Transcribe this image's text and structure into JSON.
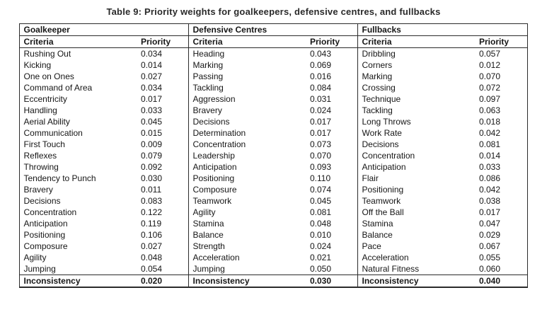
{
  "title": "Table 9: Priority weights for goalkeepers, defensive centres, and fullbacks",
  "chart_data": {
    "type": "table",
    "groups": [
      {
        "name": "Goalkeeper",
        "col_headers": [
          "Criteria",
          "Priority"
        ],
        "rows": [
          [
            "Rushing Out",
            "0.034"
          ],
          [
            "Kicking",
            "0.014"
          ],
          [
            "One on Ones",
            "0.027"
          ],
          [
            "Command of Area",
            "0.034"
          ],
          [
            "Eccentricity",
            "0.017"
          ],
          [
            "Handling",
            "0.033"
          ],
          [
            "Aerial Ability",
            "0.045"
          ],
          [
            "Communication",
            "0.015"
          ],
          [
            "First Touch",
            "0.009"
          ],
          [
            "Reflexes",
            "0.079"
          ],
          [
            "Throwing",
            "0.092"
          ],
          [
            "Tendency to Punch",
            "0.030"
          ],
          [
            "Bravery",
            "0.011"
          ],
          [
            "Decisions",
            "0.083"
          ],
          [
            "Concentration",
            "0.122"
          ],
          [
            "Anticipation",
            "0.119"
          ],
          [
            "Positioning",
            "0.106"
          ],
          [
            "Composure",
            "0.027"
          ],
          [
            "Agility",
            "0.048"
          ],
          [
            "Jumping",
            "0.054"
          ]
        ],
        "footer": [
          "Inconsistency",
          "0.020"
        ]
      },
      {
        "name": "Defensive Centres",
        "col_headers": [
          "Criteria",
          "Priority"
        ],
        "rows": [
          [
            "Heading",
            "0.043"
          ],
          [
            "Marking",
            "0.069"
          ],
          [
            "Passing",
            "0.016"
          ],
          [
            "Tackling",
            "0.084"
          ],
          [
            "Aggression",
            "0.031"
          ],
          [
            "Bravery",
            "0.024"
          ],
          [
            "Decisions",
            "0.017"
          ],
          [
            "Determination",
            "0.017"
          ],
          [
            "Concentration",
            "0.073"
          ],
          [
            "Leadership",
            "0.070"
          ],
          [
            "Anticipation",
            "0.093"
          ],
          [
            "Positioning",
            "0.110"
          ],
          [
            "Composure",
            "0.074"
          ],
          [
            "Teamwork",
            "0.045"
          ],
          [
            "Agility",
            "0.081"
          ],
          [
            "Stamina",
            "0.048"
          ],
          [
            "Balance",
            "0.010"
          ],
          [
            "Strength",
            "0.024"
          ],
          [
            "Acceleration",
            "0.021"
          ],
          [
            "Jumping",
            "0.050"
          ]
        ],
        "footer": [
          "Inconsistency",
          "0.030"
        ]
      },
      {
        "name": "Fullbacks",
        "col_headers": [
          "Criteria",
          "Priority"
        ],
        "rows": [
          [
            "Dribbling",
            "0.057"
          ],
          [
            "Corners",
            "0.012"
          ],
          [
            "Marking",
            "0.070"
          ],
          [
            "Crossing",
            "0.072"
          ],
          [
            "Technique",
            "0.097"
          ],
          [
            "Tackling",
            "0.063"
          ],
          [
            "Long Throws",
            "0.018"
          ],
          [
            "Work Rate",
            "0.042"
          ],
          [
            "Decisions",
            "0.081"
          ],
          [
            "Concentration",
            "0.014"
          ],
          [
            "Anticipation",
            "0.033"
          ],
          [
            "Flair",
            "0.086"
          ],
          [
            "Positioning",
            "0.042"
          ],
          [
            "Teamwork",
            "0.038"
          ],
          [
            "Off the Ball",
            "0.017"
          ],
          [
            "Stamina",
            "0.047"
          ],
          [
            "Balance",
            "0.029"
          ],
          [
            "Pace",
            "0.067"
          ],
          [
            "Acceleration",
            "0.055"
          ],
          [
            "Natural Fitness",
            "0.060"
          ]
        ],
        "footer": [
          "Inconsistency",
          "0.040"
        ]
      }
    ]
  }
}
